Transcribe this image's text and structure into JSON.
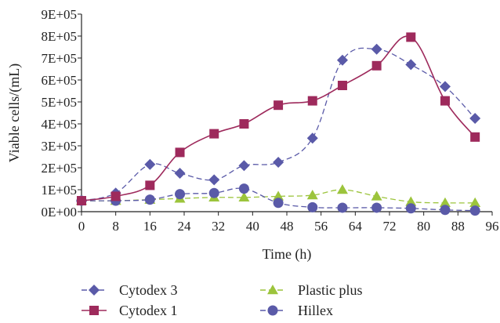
{
  "chart_data": {
    "type": "line",
    "title": "",
    "xlabel": "Time (h)",
    "ylabel": "Viable cells/(mL)",
    "xlim": [
      0,
      96
    ],
    "ylim": [
      0,
      900000
    ],
    "x_ticks": [
      "0",
      "8",
      "16",
      "24",
      "32",
      "40",
      "48",
      "56",
      "64",
      "72",
      "80",
      "88",
      "96"
    ],
    "y_ticks": [
      "0E+00",
      "1E+05",
      "2E+05",
      "3E+05",
      "4E+05",
      "5E+05",
      "6E+05",
      "7E+05",
      "8E+05",
      "9E+05"
    ],
    "grid": false,
    "legend_position": "bottom",
    "series": [
      {
        "name": "Cytodex 3",
        "color": "#5a5aa8",
        "line_style": "dashed",
        "marker": "diamond",
        "smooth": true,
        "x": [
          0,
          8,
          16,
          23,
          31,
          38,
          46,
          54,
          61,
          69,
          77,
          85,
          92
        ],
        "y": [
          50000,
          85000,
          215000,
          175000,
          145000,
          210000,
          225000,
          335000,
          690000,
          740000,
          670000,
          570000,
          425000
        ]
      },
      {
        "name": "Cytodex 1",
        "color": "#9e2a5c",
        "line_style": "solid",
        "marker": "square",
        "smooth": true,
        "x": [
          0,
          8,
          16,
          23,
          31,
          38,
          46,
          54,
          61,
          69,
          77,
          85,
          92
        ],
        "y": [
          50000,
          70000,
          120000,
          270000,
          355000,
          400000,
          485000,
          505000,
          575000,
          665000,
          795000,
          505000,
          340000
        ]
      },
      {
        "name": "Plastic plus",
        "color": "#9cc43c",
        "line_style": "dashed",
        "marker": "triangle",
        "smooth": true,
        "x": [
          0,
          8,
          16,
          23,
          31,
          38,
          46,
          54,
          61,
          69,
          77,
          85,
          92
        ],
        "y": [
          50000,
          50000,
          55000,
          60000,
          65000,
          65000,
          70000,
          75000,
          100000,
          70000,
          45000,
          40000,
          40000
        ]
      },
      {
        "name": "Hillex",
        "color": "#5a5aa8",
        "line_style": "dashed",
        "marker": "circle",
        "smooth": true,
        "x": [
          0,
          8,
          16,
          23,
          31,
          38,
          46,
          54,
          61,
          69,
          77,
          85,
          92
        ],
        "y": [
          50000,
          50000,
          55000,
          80000,
          85000,
          105000,
          40000,
          20000,
          18000,
          18000,
          15000,
          8000,
          5000
        ]
      }
    ],
    "legend": [
      {
        "label": "Cytodex 3",
        "series": 0
      },
      {
        "label": "Plastic plus",
        "series": 2
      },
      {
        "label": "Cytodex 1",
        "series": 1
      },
      {
        "label": "Hillex",
        "series": 3
      }
    ]
  }
}
